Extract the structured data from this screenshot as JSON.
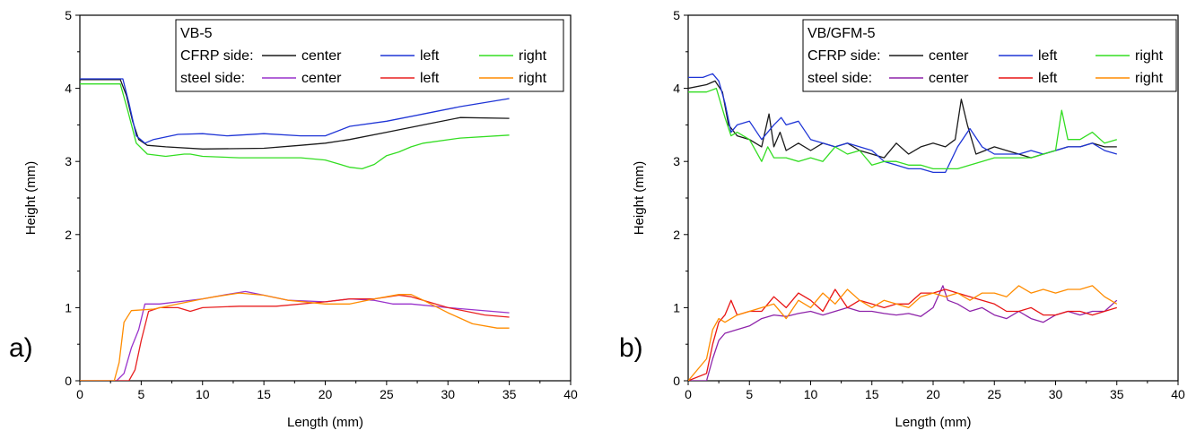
{
  "chart_data": [
    {
      "type": "line",
      "panel_label": "a)",
      "xlabel": "Length (mm)",
      "ylabel": "Height (mm)",
      "xlim": [
        0,
        40
      ],
      "ylim": [
        0,
        5
      ],
      "xticks": [
        0,
        5,
        10,
        15,
        20,
        25,
        30,
        35,
        40
      ],
      "yticks": [
        0,
        1,
        2,
        3,
        4,
        5
      ],
      "grid": false,
      "legend_placement": "top-right",
      "legend": {
        "title": "VB-5",
        "cfrp_label": "CFRP side:",
        "steel_label": "steel side:",
        "entries": [
          "center",
          "left",
          "right"
        ]
      },
      "series": [
        {
          "group": "CFRP",
          "name": "center",
          "color": "#1a1a1a",
          "x": [
            0,
            2,
            3.3,
            3.8,
            4.3,
            4.8,
            5.5,
            7,
            10,
            15,
            18,
            20,
            22,
            25,
            28,
            31,
            35
          ],
          "y": [
            4.12,
            4.12,
            4.12,
            3.9,
            3.55,
            3.3,
            3.22,
            3.2,
            3.17,
            3.18,
            3.22,
            3.25,
            3.3,
            3.4,
            3.5,
            3.6,
            3.59
          ]
        },
        {
          "group": "CFRP",
          "name": "left",
          "color": "#1f35d6",
          "x": [
            0,
            3.5,
            4,
            4.6,
            5.3,
            6,
            8,
            10,
            12,
            15,
            18,
            20,
            22,
            25,
            28,
            31,
            35
          ],
          "y": [
            4.13,
            4.13,
            3.8,
            3.35,
            3.25,
            3.3,
            3.37,
            3.38,
            3.35,
            3.38,
            3.35,
            3.35,
            3.48,
            3.55,
            3.65,
            3.75,
            3.86
          ]
        },
        {
          "group": "CFRP",
          "name": "right",
          "color": "#33dd22",
          "x": [
            0,
            3.3,
            3.9,
            4.6,
            5.5,
            7,
            8.5,
            9,
            10,
            13,
            15,
            18,
            20,
            21,
            22,
            23,
            24,
            25,
            26,
            27,
            28,
            31,
            35
          ],
          "y": [
            4.06,
            4.06,
            3.7,
            3.25,
            3.1,
            3.07,
            3.1,
            3.1,
            3.07,
            3.05,
            3.05,
            3.05,
            3.02,
            2.97,
            2.92,
            2.9,
            2.96,
            3.08,
            3.13,
            3.2,
            3.25,
            3.32,
            3.36
          ]
        },
        {
          "group": "steel",
          "name": "center",
          "color": "#9932cc",
          "x": [
            0,
            3,
            3.6,
            4.2,
            4.8,
            5.3,
            6.5,
            8,
            10,
            12,
            13.5,
            15,
            17,
            20,
            22,
            24,
            25.5,
            27,
            30,
            35
          ],
          "y": [
            0,
            0,
            0.1,
            0.45,
            0.7,
            1.05,
            1.05,
            1.08,
            1.12,
            1.18,
            1.22,
            1.17,
            1.1,
            1.08,
            1.12,
            1.1,
            1.05,
            1.05,
            1.0,
            0.93
          ]
        },
        {
          "group": "steel",
          "name": "left",
          "color": "#e82020",
          "x": [
            0,
            4,
            4.5,
            5,
            5.6,
            6.5,
            8,
            9,
            10,
            13,
            16,
            20,
            22,
            24,
            26,
            27,
            30,
            33,
            35
          ],
          "y": [
            0,
            0,
            0.15,
            0.55,
            0.95,
            1.0,
            1.0,
            0.95,
            1.0,
            1.02,
            1.02,
            1.08,
            1.12,
            1.12,
            1.17,
            1.15,
            1.0,
            0.9,
            0.87
          ]
        },
        {
          "group": "steel",
          "name": "right",
          "color": "#ff8c00",
          "x": [
            0,
            2.8,
            3.2,
            3.6,
            4.2,
            6,
            8,
            10,
            11,
            13,
            15,
            17,
            20,
            22,
            24,
            26,
            27,
            28,
            30,
            32,
            34,
            35
          ],
          "y": [
            0,
            0,
            0.25,
            0.8,
            0.96,
            0.98,
            1.05,
            1.12,
            1.15,
            1.2,
            1.17,
            1.1,
            1.05,
            1.05,
            1.12,
            1.18,
            1.18,
            1.1,
            0.93,
            0.78,
            0.72,
            0.72
          ]
        }
      ]
    },
    {
      "type": "line",
      "panel_label": "b)",
      "xlabel": "Length (mm)",
      "ylabel": "Height (mm)",
      "xlim": [
        0,
        40
      ],
      "ylim": [
        0,
        5
      ],
      "xticks": [
        0,
        5,
        10,
        15,
        20,
        25,
        30,
        35,
        40
      ],
      "yticks": [
        0,
        1,
        2,
        3,
        4,
        5
      ],
      "grid": false,
      "legend_placement": "top-right",
      "legend": {
        "title": "VB/GFM-5",
        "cfrp_label": "CFRP side:",
        "steel_label": "steel side:",
        "entries": [
          "center",
          "left",
          "right"
        ]
      },
      "series": [
        {
          "group": "CFRP",
          "name": "center",
          "color": "#1a1a1a",
          "x": [
            0,
            1.5,
            2.2,
            2.8,
            3.3,
            4,
            5,
            6,
            6.6,
            7,
            7.5,
            8,
            9,
            10,
            11,
            12,
            13,
            14,
            15,
            16,
            17,
            18,
            19,
            20,
            21,
            21.8,
            22.3,
            22.8,
            23.5,
            25,
            26,
            27,
            28,
            29,
            30,
            31,
            32,
            33,
            34,
            35
          ],
          "y": [
            4.0,
            4.05,
            4.1,
            3.95,
            3.5,
            3.35,
            3.3,
            3.2,
            3.65,
            3.2,
            3.4,
            3.15,
            3.25,
            3.15,
            3.25,
            3.2,
            3.25,
            3.15,
            3.1,
            3.05,
            3.25,
            3.1,
            3.2,
            3.25,
            3.2,
            3.3,
            3.85,
            3.5,
            3.1,
            3.2,
            3.15,
            3.1,
            3.05,
            3.1,
            3.15,
            3.2,
            3.2,
            3.25,
            3.2,
            3.2
          ]
        },
        {
          "group": "CFRP",
          "name": "left",
          "color": "#1f35d6",
          "x": [
            0,
            1.2,
            2,
            2.5,
            3,
            3.5,
            4,
            5,
            6,
            7,
            7.6,
            8,
            9,
            10,
            11,
            12,
            13,
            14,
            15,
            16,
            17,
            18,
            19,
            20,
            21,
            22,
            23,
            24,
            25,
            26,
            27,
            28,
            29,
            30,
            31,
            32,
            33,
            34,
            35
          ],
          "y": [
            4.15,
            4.15,
            4.2,
            4.1,
            3.8,
            3.4,
            3.5,
            3.55,
            3.3,
            3.5,
            3.6,
            3.5,
            3.55,
            3.3,
            3.25,
            3.2,
            3.25,
            3.2,
            3.15,
            3.0,
            2.95,
            2.9,
            2.9,
            2.85,
            2.85,
            3.2,
            3.45,
            3.2,
            3.1,
            3.1,
            3.1,
            3.15,
            3.1,
            3.15,
            3.2,
            3.2,
            3.25,
            3.15,
            3.1
          ]
        },
        {
          "group": "CFRP",
          "name": "right",
          "color": "#33dd22",
          "x": [
            0,
            1.5,
            2.3,
            3,
            3.5,
            4,
            5,
            6,
            6.5,
            7,
            8,
            9,
            10,
            11,
            12,
            13,
            14,
            15,
            16,
            17,
            18,
            19,
            20,
            21,
            22,
            23,
            24,
            25,
            26,
            27,
            28,
            29,
            30,
            30.5,
            31,
            32,
            33,
            34,
            35
          ],
          "y": [
            3.95,
            3.95,
            4.0,
            3.6,
            3.35,
            3.4,
            3.3,
            3.0,
            3.2,
            3.05,
            3.05,
            3.0,
            3.05,
            3.0,
            3.2,
            3.1,
            3.15,
            2.95,
            3.0,
            3.0,
            2.95,
            2.95,
            2.9,
            2.9,
            2.9,
            2.95,
            3.0,
            3.05,
            3.05,
            3.05,
            3.05,
            3.1,
            3.15,
            3.7,
            3.3,
            3.3,
            3.4,
            3.25,
            3.3
          ]
        },
        {
          "group": "steel",
          "name": "center",
          "color": "#8e24aa",
          "x": [
            0,
            1.5,
            2,
            2.5,
            3,
            4,
            5,
            6,
            7,
            8,
            9,
            10,
            11,
            12,
            13,
            14,
            15,
            16,
            17,
            18,
            19,
            20,
            20.8,
            21.2,
            22,
            23,
            24,
            25,
            26,
            27,
            28,
            29,
            30,
            31,
            32,
            33,
            34,
            35
          ],
          "y": [
            0,
            0,
            0.3,
            0.55,
            0.65,
            0.7,
            0.75,
            0.85,
            0.9,
            0.88,
            0.92,
            0.95,
            0.9,
            0.95,
            1.0,
            0.95,
            0.95,
            0.92,
            0.9,
            0.92,
            0.88,
            1.0,
            1.3,
            1.1,
            1.05,
            0.95,
            1.0,
            0.9,
            0.85,
            0.95,
            0.85,
            0.8,
            0.9,
            0.95,
            0.9,
            0.95,
            0.95,
            1.1
          ]
        },
        {
          "group": "steel",
          "name": "left",
          "color": "#e81515",
          "x": [
            0,
            1.5,
            2,
            2.5,
            3,
            3.5,
            4,
            5,
            6,
            7,
            8,
            9,
            10,
            11,
            12,
            13,
            14,
            15,
            16,
            17,
            18,
            19,
            20,
            21,
            22,
            23,
            24,
            25,
            26,
            27,
            28,
            29,
            30,
            31,
            32,
            33,
            34,
            35
          ],
          "y": [
            0,
            0.1,
            0.5,
            0.8,
            0.9,
            1.1,
            0.9,
            0.95,
            0.95,
            1.15,
            1.0,
            1.2,
            1.1,
            0.95,
            1.25,
            1.0,
            1.1,
            1.05,
            1.0,
            1.05,
            1.05,
            1.2,
            1.2,
            1.25,
            1.2,
            1.15,
            1.1,
            1.05,
            0.95,
            0.95,
            1.0,
            0.9,
            0.9,
            0.95,
            0.95,
            0.9,
            0.95,
            1.0
          ]
        },
        {
          "group": "steel",
          "name": "right",
          "color": "#ff8c00",
          "x": [
            0,
            1.5,
            2,
            2.5,
            3,
            4,
            5,
            6,
            7,
            8,
            9,
            10,
            11,
            12,
            13,
            14,
            15,
            16,
            17,
            18,
            19,
            20,
            21,
            22,
            23,
            24,
            25,
            26,
            27,
            28,
            29,
            30,
            31,
            32,
            33,
            34,
            35
          ],
          "y": [
            0,
            0.3,
            0.7,
            0.85,
            0.8,
            0.9,
            0.95,
            1.0,
            1.05,
            0.85,
            1.1,
            1.0,
            1.2,
            1.05,
            1.25,
            1.1,
            1.0,
            1.1,
            1.05,
            1.0,
            1.15,
            1.2,
            1.15,
            1.2,
            1.1,
            1.2,
            1.2,
            1.15,
            1.3,
            1.2,
            1.25,
            1.2,
            1.25,
            1.25,
            1.3,
            1.15,
            1.05
          ]
        }
      ]
    }
  ]
}
